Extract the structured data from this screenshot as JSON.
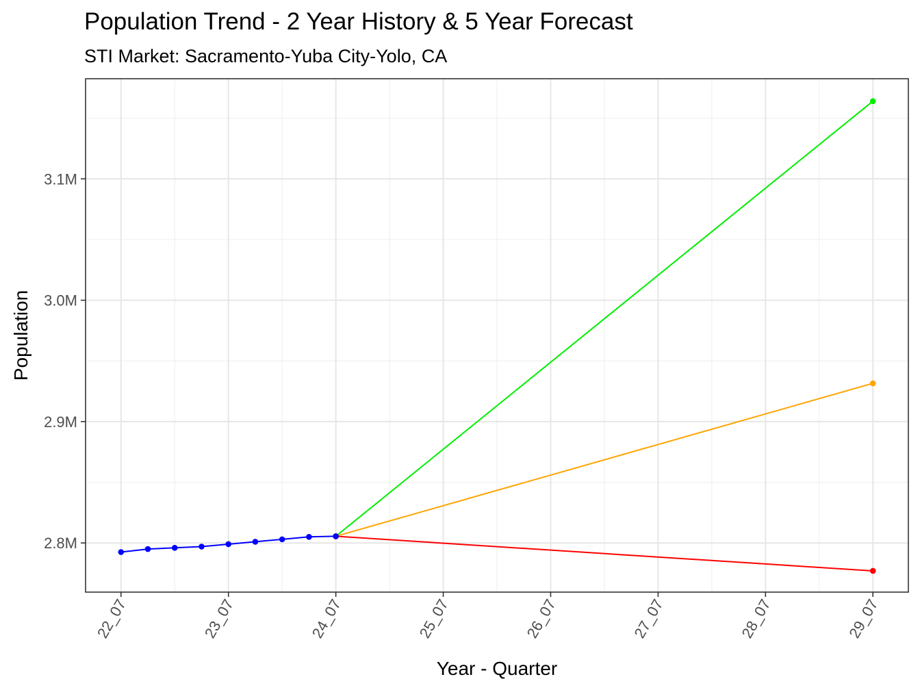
{
  "chart_data": {
    "type": "line",
    "title": "Population Trend - 2 Year History & 5 Year Forecast",
    "subtitle": "STI Market: Sacramento-Yuba City-Yolo, CA",
    "xlabel": "Year - Quarter",
    "ylabel": "Population",
    "x_ticks": [
      "22_07",
      "23_07",
      "24_07",
      "25_07",
      "26_07",
      "27_07",
      "28_07",
      "29_07"
    ],
    "x_tick_positions": [
      0,
      1,
      2,
      3,
      4,
      5,
      6,
      7
    ],
    "y_ticks": [
      2800000,
      2900000,
      3000000,
      3100000
    ],
    "y_tick_labels": [
      "2.8M",
      "2.9M",
      "3.0M",
      "3.1M"
    ],
    "xlim": [
      -0.33,
      7.33
    ],
    "ylim": [
      2759500,
      3182500
    ],
    "grid": true,
    "series": [
      {
        "color": "#0000ff",
        "points": [
          [
            0.0,
            2792500
          ],
          [
            0.25,
            2795000
          ],
          [
            0.5,
            2796000
          ],
          [
            0.75,
            2797000
          ],
          [
            1.0,
            2799000
          ],
          [
            1.25,
            2801000
          ],
          [
            1.5,
            2803000
          ],
          [
            1.75,
            2805000
          ],
          [
            2.0,
            2805500
          ]
        ]
      },
      {
        "color": "#00ee00",
        "points": [
          [
            2.0,
            2805500
          ],
          [
            7.0,
            3164000
          ]
        ]
      },
      {
        "color": "#ffa500",
        "points": [
          [
            2.0,
            2805500
          ],
          [
            7.0,
            2931500
          ]
        ]
      },
      {
        "color": "#ff0000",
        "points": [
          [
            2.0,
            2805500
          ],
          [
            7.0,
            2777000
          ]
        ]
      }
    ]
  }
}
